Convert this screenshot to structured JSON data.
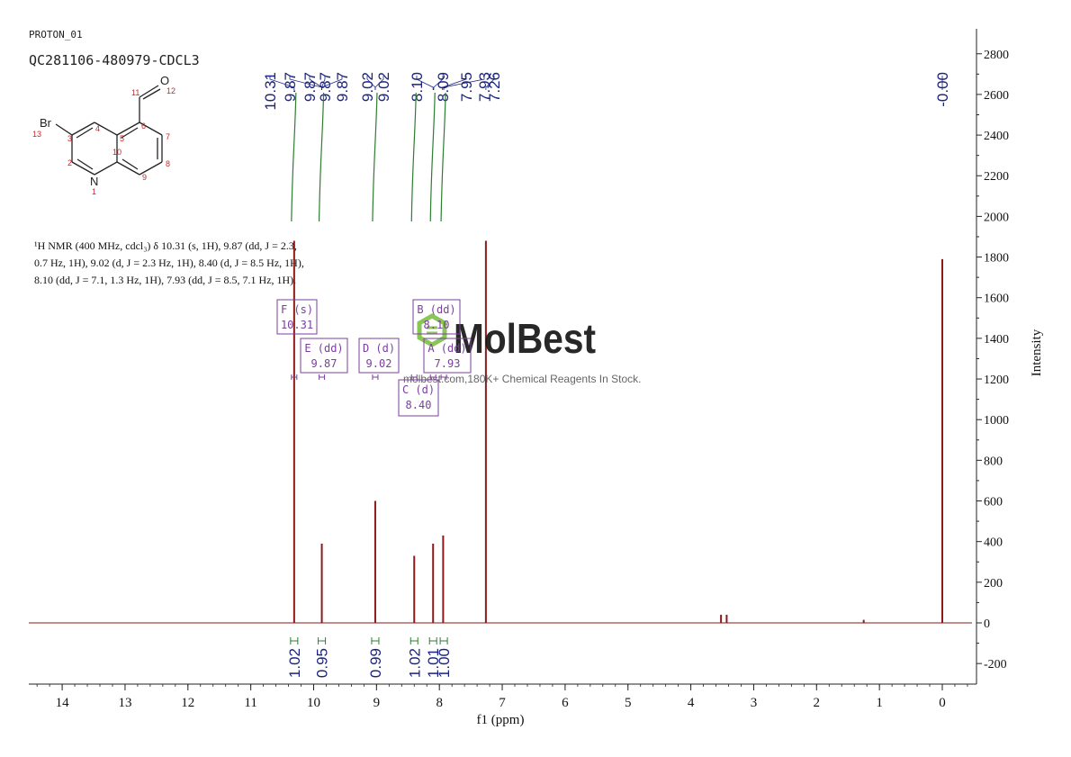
{
  "header": {
    "experiment": "PROTON_01",
    "sample": "QC281106-480979-CDCL3"
  },
  "structure": {
    "atoms": {
      "br": "Br",
      "br_num": "13",
      "n": "N",
      "n_num": "1",
      "o": "O",
      "o_num": "12",
      "c2": "2",
      "c3": "3",
      "c4": "4",
      "c5": "5",
      "c6": "6",
      "c7": "7",
      "c8": "8",
      "c9": "9",
      "c10": "10",
      "c11": "11"
    }
  },
  "description": {
    "lines": [
      "¹H NMR (400 MHz, cdcl₃) δ 10.31 (s, 1H), 9.87 (dd, J = 2.3,",
      "0.7 Hz, 1H), 9.02 (d, J = 2.3 Hz, 1H), 8.40 (d, J = 8.5 Hz, 1H),",
      "8.10 (dd, J = 7.1, 1.3 Hz, 1H), 7.93 (dd, J = 8.5, 7.1 Hz, 1H)."
    ]
  },
  "watermark": {
    "brand": "MolBest",
    "tagline": "molbest.com,180K+ Chemical Reagents In Stock."
  },
  "chart_data": {
    "type": "line",
    "title": "",
    "xlabel": "f1 (ppm)",
    "ylabel": "Intensity",
    "xlim": [
      14.5,
      -0.5
    ],
    "ylim": [
      -300,
      2900
    ],
    "x_ticks": [
      14,
      13,
      12,
      11,
      10,
      9,
      8,
      7,
      6,
      5,
      4,
      3,
      2,
      1,
      0
    ],
    "y_ticks": [
      -200,
      0,
      200,
      400,
      600,
      800,
      1000,
      1200,
      1400,
      1600,
      1800,
      2000,
      2200,
      2400,
      2600,
      2800
    ],
    "grid": false,
    "series": [
      {
        "peaks": [
          {
            "ppm": 10.31,
            "intensity": 1880
          },
          {
            "ppm": 9.87,
            "intensity": 390
          },
          {
            "ppm": 9.02,
            "intensity": 600
          },
          {
            "ppm": 8.4,
            "intensity": 330
          },
          {
            "ppm": 8.1,
            "intensity": 390
          },
          {
            "ppm": 7.94,
            "intensity": 430
          },
          {
            "ppm": 7.26,
            "intensity": 1880
          },
          {
            "ppm": 3.52,
            "intensity": 40
          },
          {
            "ppm": 3.43,
            "intensity": 40
          },
          {
            "ppm": 1.25,
            "intensity": 15
          },
          {
            "ppm": 0.0,
            "intensity": 1790
          }
        ]
      }
    ],
    "peak_labels": [
      "10.31",
      "9.87",
      "9.87",
      "9.87",
      "9.87",
      "9.02",
      "9.02",
      "8.10",
      "8.09",
      "7.95",
      "7.93",
      "7.26",
      "-0.00"
    ],
    "multiplets": [
      {
        "id": "F (s)",
        "value": "10.31"
      },
      {
        "id": "E (dd)",
        "value": "9.87"
      },
      {
        "id": "D (d)",
        "value": "9.02"
      },
      {
        "id": "B (dd)",
        "value": "8.10"
      },
      {
        "id": "A (dd)",
        "value": "7.93"
      },
      {
        "id": "C (d)",
        "value": "8.40"
      }
    ],
    "integrals": [
      {
        "ppm": 10.31,
        "value": "1.02"
      },
      {
        "ppm": 9.87,
        "value": "0.95"
      },
      {
        "ppm": 9.02,
        "value": "0.99"
      },
      {
        "ppm": 8.4,
        "value": "1.02"
      },
      {
        "ppm": 8.1,
        "value": "1.01"
      },
      {
        "ppm": 7.93,
        "value": "1.00"
      }
    ]
  },
  "colors": {
    "spectrum": "#8b1a1a",
    "peak_label": "#1a237e",
    "integral": "#2e7d32",
    "multiplet_box": "#7b3f9e",
    "atom_label": "#c62828",
    "watermark": "#7cc242"
  }
}
